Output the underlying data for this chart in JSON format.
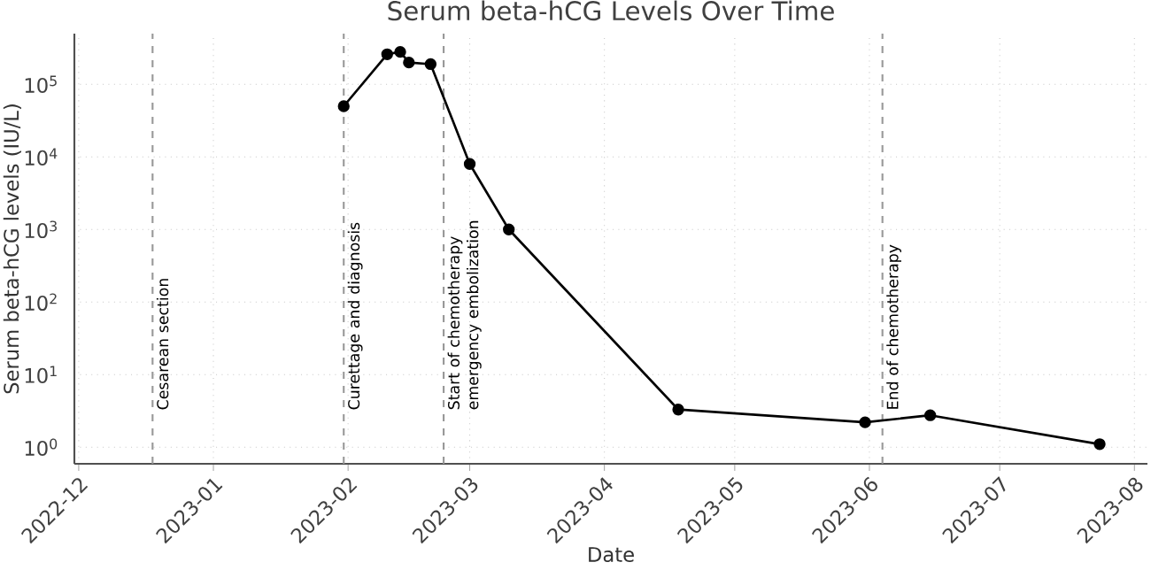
{
  "chart_data": {
    "type": "line",
    "title": "Serum beta-hCG Levels Over Time",
    "xlabel": "Date",
    "ylabel": "Serum beta-hCG levels (IU/L)",
    "x": [
      "2023-01-31",
      "2023-02-10",
      "2023-02-13",
      "2023-02-15",
      "2023-02-20",
      "2023-03-01",
      "2023-03-10",
      "2023-04-18",
      "2023-05-31",
      "2023-06-15",
      "2023-07-24"
    ],
    "series": [
      {
        "color": "#000000",
        "values": [
          50000,
          260000,
          280000,
          200000,
          190000,
          8000,
          1000,
          3.3,
          2.2,
          2.75,
          1.1
        ]
      }
    ],
    "log": true,
    "grid": true,
    "marker": "circle",
    "line_style": "solid",
    "xlim": [
      "2022-11-30",
      "2023-08-04"
    ],
    "xticks": [
      "2022-12",
      "2023-01",
      "2023-02",
      "2023-03",
      "2023-04",
      "2023-05",
      "2023-06",
      "2023-07",
      "2023-08"
    ],
    "ylim": [
      0.59,
      500000
    ],
    "yticks": [
      {
        "value": 1,
        "label": "10$^{0}$"
      },
      {
        "value": 10,
        "label": "10$^{1}$"
      },
      {
        "value": 100,
        "label": "10$^{2}$"
      },
      {
        "value": 1000,
        "label": "10$^{3}$"
      },
      {
        "value": 10000,
        "label": "10$^{4}$"
      },
      {
        "value": 100000,
        "label": "10$^{5}$"
      }
    ],
    "ref_lines": [
      {
        "axis": "x",
        "value": "2022-12-18",
        "label": "Cesarean section",
        "color": "#999999",
        "line_style": "dashed"
      },
      {
        "axis": "x",
        "value": "2023-01-31",
        "label": "Curettage and diagnosis",
        "color": "#999999",
        "line_style": "dashed"
      },
      {
        "axis": "x",
        "value": "2023-02-23",
        "label": "Start of chemotherapy emergency embolization",
        "color": "#999999",
        "line_style": "dashed"
      },
      {
        "axis": "x",
        "value": "2023-06-04",
        "label": "End of chemotherapy",
        "color": "#999999",
        "line_style": "dashed"
      }
    ]
  }
}
